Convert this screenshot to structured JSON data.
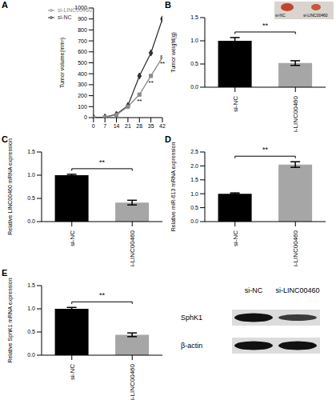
{
  "chart_data": [
    {
      "panel": "A",
      "type": "line",
      "y_label": "Tumor volume(mm³)",
      "x": [
        0,
        7,
        14,
        21,
        28,
        35,
        42
      ],
      "series": [
        {
          "name": "si-NC",
          "color": "#333333",
          "marker": "diamond",
          "values": [
            0,
            5,
            30,
            110,
            380,
            590,
            900
          ]
        },
        {
          "name": "si-LINC00460",
          "color": "#8c8c8c",
          "marker": "square",
          "values": [
            0,
            3,
            25,
            100,
            210,
            380,
            550
          ]
        }
      ],
      "xlim": [
        0,
        42
      ],
      "xticks": [
        0,
        7,
        14,
        21,
        28,
        35,
        42
      ],
      "ylim": [
        0,
        1000
      ],
      "yticks": [
        0,
        100,
        200,
        300,
        400,
        500,
        600,
        700,
        800,
        900,
        1000
      ],
      "legend": "upper left",
      "annotations": [
        {
          "x": 28,
          "text": "**"
        },
        {
          "x": 35,
          "text": "**"
        },
        {
          "x": 42,
          "text": "**"
        }
      ]
    },
    {
      "panel": "B",
      "type": "bar",
      "y_label": "Tumor weight(g)",
      "categories": [
        "si-NC",
        "si-LINC00460"
      ],
      "values": [
        1.0,
        0.52
      ],
      "errors": [
        0.07,
        0.05
      ],
      "colors": [
        "#000000",
        "#a6a6a6"
      ],
      "ylim": [
        0,
        1.5
      ],
      "yticks": [
        {
          "value": 0,
          "label": "0.0"
        },
        {
          "value": 0.5,
          "label": "0.5"
        },
        {
          "value": 1,
          "label": "1.0"
        },
        {
          "value": 1.5,
          "label": "1.5"
        }
      ],
      "annotation": "**"
    },
    {
      "panel": "C",
      "type": "bar",
      "y_label": "Relative LINC00460 mRNA expression",
      "categories": [
        "si-NC",
        "si-LINC00460"
      ],
      "values": [
        1.0,
        0.41
      ],
      "errors": [
        0.02,
        0.05
      ],
      "colors": [
        "#000000",
        "#a6a6a6"
      ],
      "ylim": [
        0,
        1.5
      ],
      "yticks": [
        {
          "value": 0,
          "label": "0.0"
        },
        {
          "value": 0.5,
          "label": "0.5"
        },
        {
          "value": 1,
          "label": "1.0"
        },
        {
          "value": 1.5,
          "label": "1.5"
        }
      ],
      "annotation": "**"
    },
    {
      "panel": "D",
      "type": "bar",
      "y_label": "Relative miR-613 mRNA expression",
      "categories": [
        "si-NC",
        "si-LINC00460"
      ],
      "values": [
        1.0,
        2.05
      ],
      "errors": [
        0.03,
        0.1
      ],
      "colors": [
        "#000000",
        "#a6a6a6"
      ],
      "ylim": [
        0,
        2.5
      ],
      "yticks": [
        {
          "value": 0,
          "label": "0.0"
        },
        {
          "value": 0.5,
          "label": "0.5"
        },
        {
          "value": 1,
          "label": "1.0"
        },
        {
          "value": 1.5,
          "label": "1.5"
        },
        {
          "value": 2,
          "label": "2.0"
        },
        {
          "value": 2.5,
          "label": "2.5"
        }
      ],
      "annotation": "**"
    },
    {
      "panel": "E",
      "type": "bar",
      "y_label": "Relative SphK1 mRNA expression",
      "categories": [
        "si-NC",
        "si-LINC00460"
      ],
      "values": [
        1.0,
        0.44
      ],
      "errors": [
        0.03,
        0.04
      ],
      "colors": [
        "#000000",
        "#a6a6a6"
      ],
      "ylim": [
        0,
        1.5
      ],
      "yticks": [
        {
          "value": 0,
          "label": "0.0"
        },
        {
          "value": 0.5,
          "label": "0.5"
        },
        {
          "value": 1,
          "label": "1.0"
        },
        {
          "value": 1.5,
          "label": "1.5"
        }
      ],
      "annotation": "**"
    }
  ],
  "blot": {
    "columns": [
      "si-NC",
      "si-LINC00460"
    ],
    "rows": [
      "SphK1",
      "β-actin"
    ]
  }
}
